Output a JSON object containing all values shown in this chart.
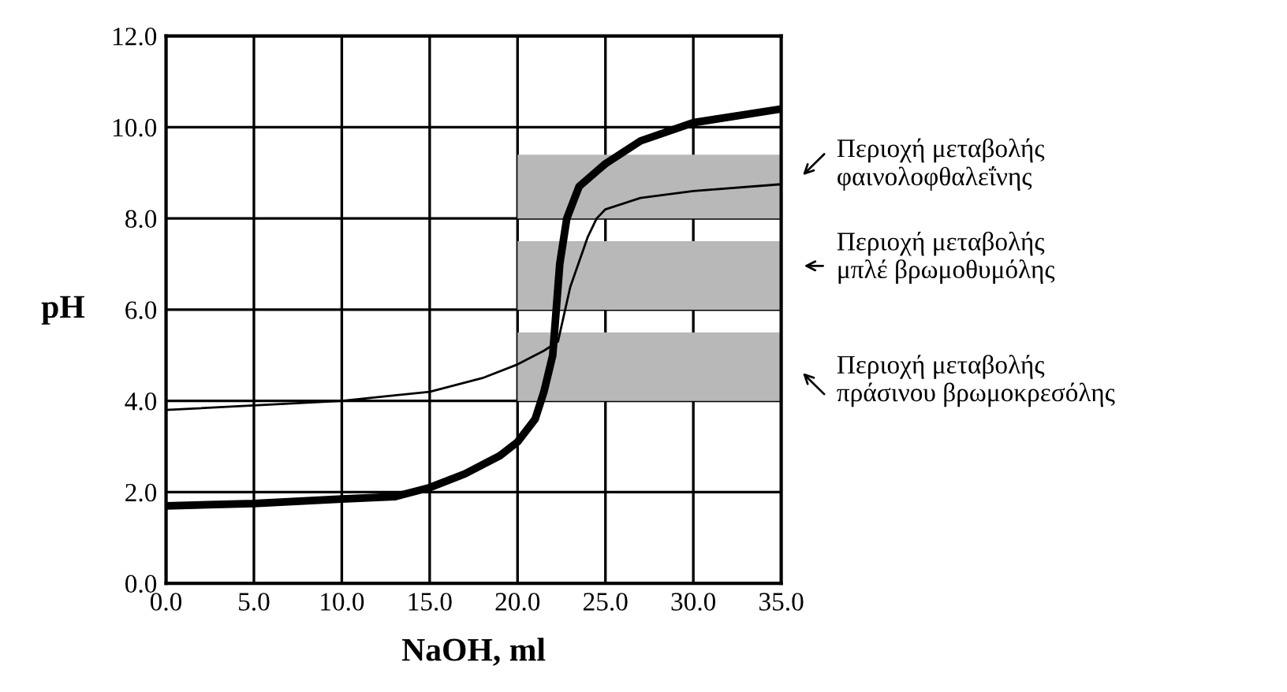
{
  "chart_data": {
    "type": "line",
    "xlabel": "NaOH, ml",
    "ylabel": "pH",
    "xlim": [
      0,
      35
    ],
    "ylim": [
      0,
      12
    ],
    "xticks": [
      {
        "value": 0,
        "label": "0.0"
      },
      {
        "value": 5,
        "label": "5.0"
      },
      {
        "value": 10,
        "label": "10.0"
      },
      {
        "value": 15,
        "label": "15.0"
      },
      {
        "value": 20,
        "label": "20.0"
      },
      {
        "value": 25,
        "label": "25.0"
      },
      {
        "value": 30,
        "label": "30.0"
      },
      {
        "value": 35,
        "label": "35.0"
      }
    ],
    "yticks": [
      {
        "value": 0,
        "label": "0.0"
      },
      {
        "value": 2,
        "label": "2.0"
      },
      {
        "value": 4,
        "label": "4.0"
      },
      {
        "value": 6,
        "label": "6.0"
      },
      {
        "value": 8,
        "label": "8.0"
      },
      {
        "value": 10,
        "label": "10.0"
      },
      {
        "value": 12,
        "label": "12.0"
      }
    ],
    "grid": true,
    "marker": "none",
    "line_style": "solid",
    "series": [
      {
        "color": "#000000",
        "x": [
          0,
          5,
          10,
          13,
          15,
          17,
          19,
          20,
          21,
          21.5,
          22,
          22.2,
          22.4,
          22.8,
          23.5,
          25,
          27,
          30,
          35
        ],
        "values": [
          1.7,
          1.75,
          1.85,
          1.9,
          2.1,
          2.4,
          2.8,
          3.1,
          3.6,
          4.2,
          5.0,
          6.0,
          7.0,
          8.0,
          8.7,
          9.2,
          9.7,
          10.1,
          10.4
        ]
      },
      {
        "color": "#000000",
        "x": [
          0,
          5,
          10,
          15,
          18,
          20,
          21.5,
          22.3,
          23,
          24,
          24.5,
          25,
          27,
          30,
          35
        ],
        "values": [
          3.8,
          3.9,
          4.0,
          4.2,
          4.5,
          4.8,
          5.1,
          5.3,
          6.5,
          7.6,
          8.0,
          8.2,
          8.45,
          8.6,
          8.75
        ]
      }
    ],
    "bands": [
      {
        "axis": "y",
        "from": 8.0,
        "to": 9.4,
        "color": "#b8b8b8"
      },
      {
        "axis": "y",
        "from": 6.0,
        "to": 7.5,
        "color": "#b8b8b8"
      },
      {
        "axis": "y",
        "from": 4.0,
        "to": 5.5,
        "color": "#b8b8b8"
      }
    ],
    "annotations": [
      "Περιοχή μεταβολής\nφαινολοφθαλεΐνης",
      "Περιοχή μεταβολής\nμπλέ βρωμοθυμόλης",
      "Περιοχή μεταβολής\nπράσινου βρωμοκρεσόλης"
    ]
  }
}
